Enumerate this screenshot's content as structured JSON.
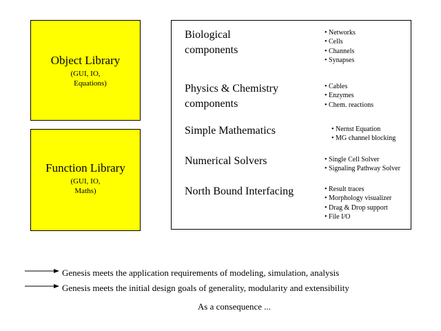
{
  "object_library": {
    "title": "Object Library",
    "sub_line1": "(GUI, IO,",
    "sub_line2": "Equations)"
  },
  "function_library": {
    "title": "Function Library",
    "sub_line1": "(GUI, IO,",
    "sub_line2": "Maths)"
  },
  "components": [
    {
      "title_line1": "Biological",
      "title_line2": "components",
      "bullets": [
        "Networks",
        "Cells",
        "Channels",
        "Synapses"
      ]
    },
    {
      "title_line1": "Physics & Chemistry",
      "title_line2": "components",
      "bullets": [
        "Cables",
        "Enzymes",
        "Chem. reactions"
      ]
    },
    {
      "title_line1": "Simple Mathematics",
      "title_line2": "",
      "bullets": [
        "Nernst Equation",
        "MG channel blocking"
      ]
    },
    {
      "title_line1": "Numerical Solvers",
      "title_line2": "",
      "bullets": [
        "Single Cell Solver",
        "Signaling Pathway Solver"
      ]
    },
    {
      "title_line1": "North Bound Interfacing",
      "title_line2": "",
      "bullets": [
        "Result traces",
        "Morphology visualizer",
        "Drag & Drop support",
        "File I/O"
      ]
    }
  ],
  "statements": [
    "Genesis meets the application requirements of modeling, simulation, analysis",
    "Genesis meets the initial design goals of generality, modularity and extensibility"
  ],
  "consequence": "As a consequence ..."
}
